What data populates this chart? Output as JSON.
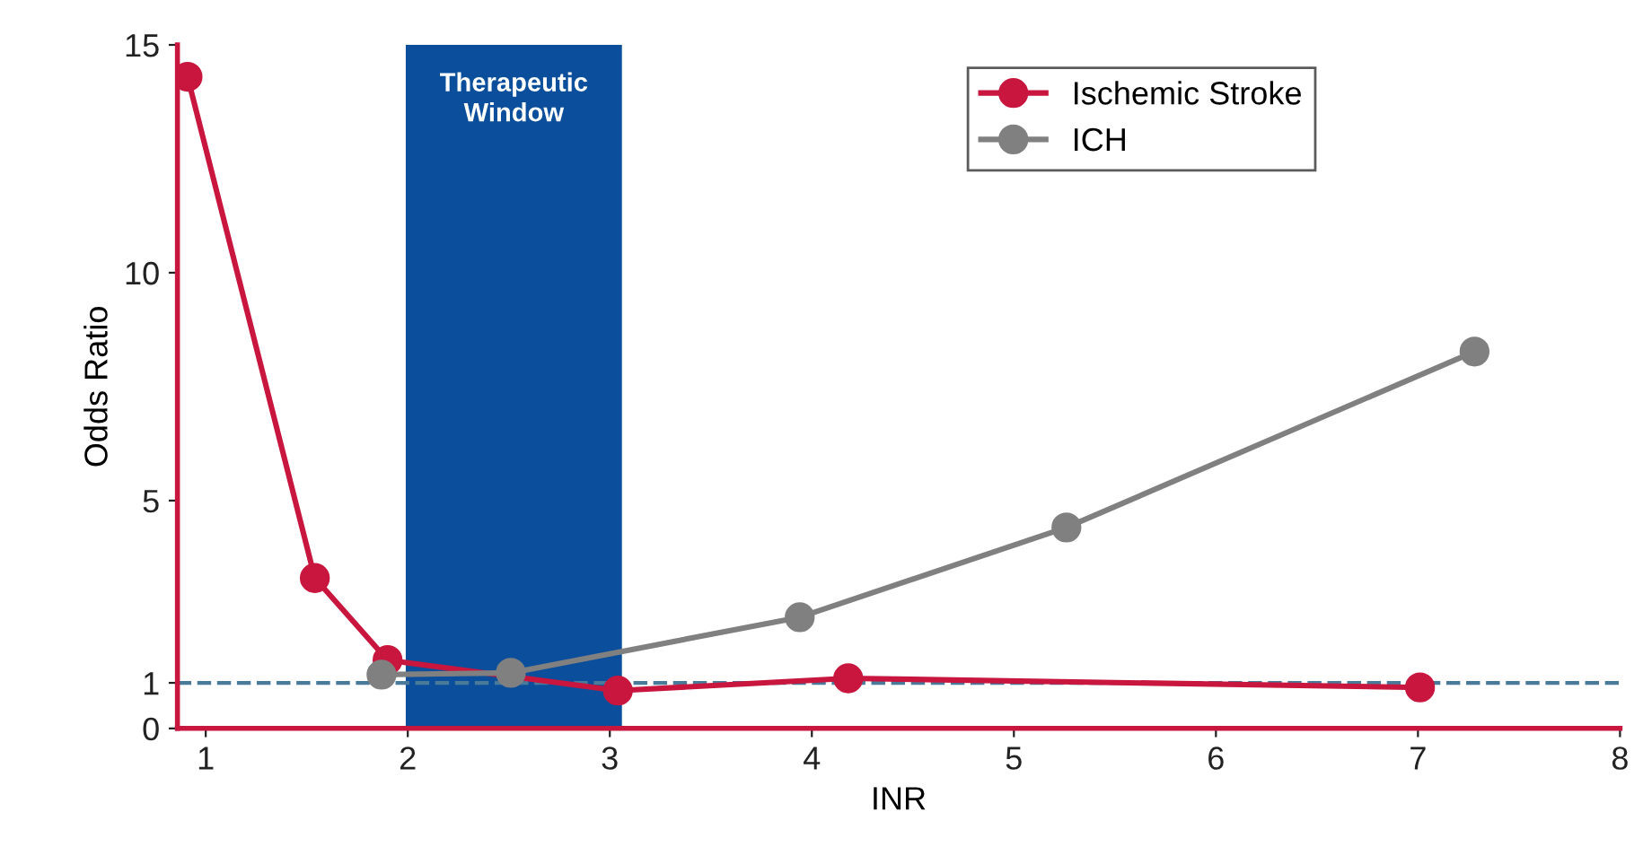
{
  "chart_data": {
    "type": "line",
    "xlabel": "INR",
    "ylabel": "Odds Ratio",
    "xlim": [
      0.86,
      8
    ],
    "xticks": [
      1,
      2,
      3,
      4,
      5,
      6,
      7,
      8
    ],
    "ylim": [
      0,
      15
    ],
    "yticks": [
      0,
      1,
      5,
      10,
      15
    ],
    "series": [
      {
        "name": "Ischemic Stroke",
        "color": "#c8163f",
        "x": [
          0.91,
          1.54,
          1.9,
          3.04,
          4.18,
          7.01
        ],
        "values": [
          14.3,
          3.3,
          1.5,
          0.83,
          1.1,
          0.9
        ]
      },
      {
        "name": "ICH",
        "color": "#808080",
        "x": [
          1.87,
          2.51,
          3.94,
          5.26,
          7.28
        ],
        "values": [
          1.18,
          1.22,
          2.44,
          4.41,
          8.27
        ]
      }
    ],
    "bands": [
      {
        "axis": "x",
        "from": 1.99,
        "to": 3.06,
        "label": "Therapeutic\nWindow",
        "color": "#0b4f9c"
      }
    ],
    "ref_lines": [
      {
        "axis": "y",
        "value": 1,
        "color": "#4a7a9a",
        "line_style": "dashed"
      }
    ],
    "marker": "circle",
    "legend": "top right",
    "grid": false
  }
}
